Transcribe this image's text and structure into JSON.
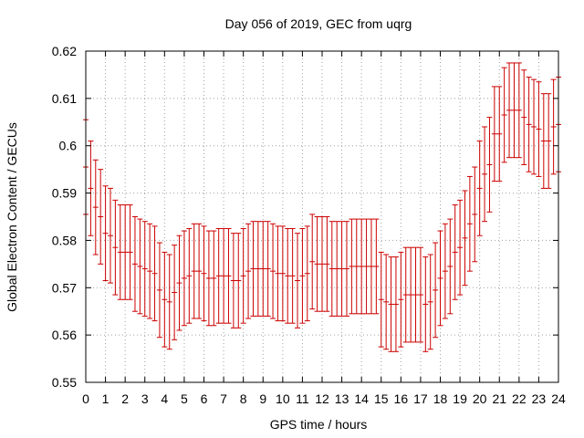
{
  "chart_data": {
    "type": "scatter",
    "title": "Day 056 of 2019, GEC from uqrg",
    "xlabel": "GPS time / hours",
    "ylabel": "Global Electron Content / GECUs",
    "xlim": [
      0,
      24
    ],
    "ylim": [
      0.55,
      0.62
    ],
    "xticks": [
      "0",
      "1",
      "2",
      "3",
      "4",
      "5",
      "6",
      "7",
      "8",
      "9",
      "10",
      "11",
      "12",
      "13",
      "14",
      "15",
      "16",
      "17",
      "18",
      "19",
      "20",
      "21",
      "22",
      "23",
      "24"
    ],
    "yticks": [
      "0.55",
      "0.56",
      "0.57",
      "0.58",
      "0.59",
      "0.6",
      "0.61",
      "0.62"
    ],
    "grid": true,
    "color": "#cc0000",
    "error_bar": 0.01,
    "series": [
      {
        "x": [
          0.0,
          0.25,
          0.5,
          0.75,
          1.0,
          1.25,
          1.5,
          1.75,
          2.0,
          2.25,
          2.5,
          2.75,
          3.0,
          3.25,
          3.5,
          3.75,
          4.0,
          4.25,
          4.5,
          4.75,
          5.0,
          5.25,
          5.5,
          5.75,
          6.0,
          6.25,
          6.5,
          6.75,
          7.0,
          7.25,
          7.5,
          7.75,
          8.0,
          8.25,
          8.5,
          8.75,
          9.0,
          9.25,
          9.5,
          9.75,
          10.0,
          10.25,
          10.5,
          10.75,
          11.0,
          11.25,
          11.5,
          11.75,
          12.0,
          12.25,
          12.5,
          12.75,
          13.0,
          13.25,
          13.5,
          13.75,
          14.0,
          14.25,
          14.5,
          14.75,
          15.0,
          15.25,
          15.5,
          15.75,
          16.0,
          16.25,
          16.5,
          16.75,
          17.0,
          17.25,
          17.5,
          17.75,
          18.0,
          18.25,
          18.5,
          18.75,
          19.0,
          19.25,
          19.5,
          19.75,
          20.0,
          20.25,
          20.5,
          20.75,
          21.0,
          21.25,
          21.5,
          21.75,
          22.0,
          22.25,
          22.5,
          22.75,
          23.0,
          23.25,
          23.5,
          23.75,
          24.0
        ],
        "y": [
          0.5955,
          0.591,
          0.587,
          0.585,
          0.5815,
          0.581,
          0.5785,
          0.5775,
          0.5775,
          0.5775,
          0.575,
          0.5745,
          0.574,
          0.5735,
          0.573,
          0.5695,
          0.5675,
          0.567,
          0.569,
          0.571,
          0.572,
          0.5725,
          0.5735,
          0.5735,
          0.573,
          0.572,
          0.572,
          0.5725,
          0.5725,
          0.5725,
          0.5715,
          0.5715,
          0.5725,
          0.5735,
          0.574,
          0.574,
          0.574,
          0.574,
          0.5735,
          0.573,
          0.573,
          0.5725,
          0.5725,
          0.5715,
          0.5725,
          0.573,
          0.5755,
          0.575,
          0.575,
          0.575,
          0.574,
          0.574,
          0.574,
          0.574,
          0.5745,
          0.5745,
          0.5745,
          0.5745,
          0.5745,
          0.5745,
          0.5675,
          0.567,
          0.5665,
          0.5665,
          0.5675,
          0.5685,
          0.5685,
          0.5685,
          0.5685,
          0.5665,
          0.567,
          0.5695,
          0.572,
          0.5735,
          0.5745,
          0.5775,
          0.5785,
          0.5805,
          0.5835,
          0.5855,
          0.591,
          0.594,
          0.596,
          0.6025,
          0.6025,
          0.6065,
          0.6075,
          0.6075,
          0.6075,
          0.606,
          0.6045,
          0.604,
          0.6035,
          0.601,
          0.601,
          0.604,
          0.6045
        ]
      }
    ]
  }
}
